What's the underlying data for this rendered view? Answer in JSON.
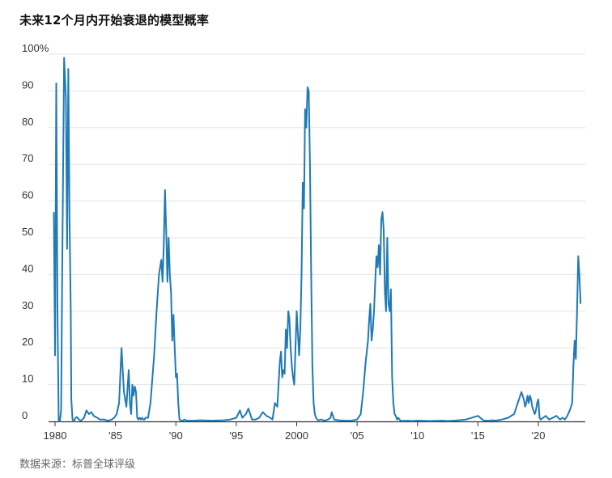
{
  "title": "未来12个月内开始衰退的模型概率",
  "source": "数据来源：标普全球评级",
  "colors": {
    "line": "#1f7ab5",
    "grid": "#e3e3e3"
  },
  "chart_data": {
    "type": "line",
    "title": "未来12个月内开始衰退的模型概率",
    "xlabel": "",
    "ylabel": "",
    "xlim": [
      1980,
      2023.5
    ],
    "ylim": [
      0,
      100
    ],
    "grid": true,
    "y_ticks": [
      {
        "value": 100,
        "label": "100%"
      },
      {
        "value": 90,
        "label": "90"
      },
      {
        "value": 80,
        "label": "80"
      },
      {
        "value": 70,
        "label": "70"
      },
      {
        "value": 60,
        "label": "60"
      },
      {
        "value": 50,
        "label": "50"
      },
      {
        "value": 40,
        "label": "40"
      },
      {
        "value": 30,
        "label": "30"
      },
      {
        "value": 20,
        "label": "20"
      },
      {
        "value": 10,
        "label": "10"
      },
      {
        "value": 0,
        "label": "0"
      }
    ],
    "x_ticks": [
      {
        "value": 1980,
        "label": "1980"
      },
      {
        "value": 1985,
        "label": "'85"
      },
      {
        "value": 1990,
        "label": "'90"
      },
      {
        "value": 1995,
        "label": "'95"
      },
      {
        "value": 2000,
        "label": "2000"
      },
      {
        "value": 2005,
        "label": "'05"
      },
      {
        "value": 2010,
        "label": "'10"
      },
      {
        "value": 2015,
        "label": "'15"
      },
      {
        "value": 2020,
        "label": "'20"
      }
    ],
    "series": [
      {
        "x": [
          1979.9,
          1980.0,
          1980.1,
          1980.2,
          1980.3,
          1980.4,
          1980.5,
          1980.6,
          1980.75,
          1980.9,
          1981.0,
          1981.1,
          1981.2,
          1981.3,
          1981.35,
          1981.45,
          1981.55,
          1981.7,
          1981.8,
          1981.9,
          1982.0,
          1982.1,
          1982.2,
          1982.4,
          1982.6,
          1982.8,
          1983.0,
          1983.2,
          1983.5,
          1983.7,
          1983.9,
          1984.1,
          1984.3,
          1984.5,
          1984.7,
          1984.9,
          1985.1,
          1985.3,
          1985.5,
          1985.7,
          1985.9,
          1986.1,
          1986.2,
          1986.3,
          1986.4,
          1986.5,
          1986.6,
          1986.7,
          1986.8,
          1986.9,
          1987.0,
          1987.1,
          1987.2,
          1987.3,
          1987.4,
          1987.5,
          1987.7,
          1987.9,
          1988.2,
          1988.4,
          1988.6,
          1988.8,
          1988.9,
          1989.0,
          1989.1,
          1989.2,
          1989.3,
          1989.4,
          1989.5,
          1989.6,
          1989.7,
          1989.8,
          1989.9,
          1990.0,
          1990.1,
          1990.2,
          1990.3,
          1990.4,
          1990.5,
          1990.6,
          1990.7,
          1990.8,
          1991.0,
          1991.5,
          1992.0,
          1993.0,
          1994.0,
          1994.5,
          1995.0,
          1995.3,
          1995.5,
          1995.8,
          1996.0,
          1996.3,
          1996.6,
          1996.9,
          1997.2,
          1997.5,
          1997.8,
          1998.0,
          1998.2,
          1998.4,
          1998.5,
          1998.6,
          1998.7,
          1998.8,
          1998.9,
          1999.0,
          1999.1,
          1999.2,
          1999.3,
          1999.4,
          1999.5,
          1999.6,
          1999.7,
          1999.8,
          1999.9,
          2000.0,
          2000.1,
          2000.2,
          2000.3,
          2000.4,
          2000.5,
          2000.6,
          2000.7,
          2000.8,
          2000.9,
          2001.0,
          2001.1,
          2001.2,
          2001.3,
          2001.4,
          2001.5,
          2001.6,
          2001.7,
          2001.8,
          2002.0,
          2002.3,
          2002.6,
          2002.8,
          2002.9,
          2003.1,
          2003.5,
          2004.0,
          2004.5,
          2005.0,
          2005.3,
          2005.5,
          2005.7,
          2005.9,
          2006.0,
          2006.1,
          2006.2,
          2006.3,
          2006.4,
          2006.5,
          2006.6,
          2006.7,
          2006.8,
          2006.9,
          2007.0,
          2007.1,
          2007.2,
          2007.3,
          2007.4,
          2007.5,
          2007.6,
          2007.7,
          2007.8,
          2007.9,
          2008.0,
          2008.1,
          2008.2,
          2008.3,
          2008.4,
          2008.5,
          2008.6,
          2008.7,
          2008.8,
          2008.9,
          2009.0,
          2009.2,
          2009.5,
          2010.0,
          2011.0,
          2012.0,
          2012.5,
          2013.0,
          2014.0,
          2015.0,
          2015.5,
          2016.0,
          2016.2,
          2016.4,
          2017.0,
          2017.5,
          2018.0,
          2018.2,
          2018.4,
          2018.6,
          2018.8,
          2018.9,
          2019.0,
          2019.1,
          2019.2,
          2019.3,
          2019.4,
          2019.5,
          2019.6,
          2019.7,
          2019.8,
          2019.9,
          2020.0,
          2020.1,
          2020.2,
          2020.4,
          2020.6,
          2020.9,
          2021.2,
          2021.5,
          2021.8,
          2022.0,
          2022.2,
          2022.4,
          2022.6,
          2022.8,
          2022.9,
          2023.0,
          2023.1,
          2023.2,
          2023.3,
          2023.4,
          2023.5
        ],
        "y": [
          57,
          18,
          92,
          30,
          0,
          0,
          3,
          45,
          99,
          88,
          47,
          96,
          55,
          30,
          6,
          0.5,
          0,
          1,
          1.2,
          0.8,
          0.5,
          0.2,
          0.3,
          1,
          3,
          2,
          2.5,
          1.5,
          1,
          0.5,
          0.5,
          0.5,
          0.2,
          0.3,
          0.5,
          1,
          2,
          5,
          20,
          8,
          4,
          14,
          5,
          2,
          10,
          7,
          9.5,
          8,
          1,
          0.5,
          1,
          0.5,
          1,
          0.5,
          0.5,
          1,
          1,
          5,
          18,
          30,
          40,
          44,
          38,
          48,
          63,
          52,
          38,
          50,
          40,
          35,
          22,
          29,
          20,
          12,
          13,
          5,
          0.5,
          0.3,
          0.2,
          0.2,
          0.5,
          0.3,
          0.2,
          0.2,
          0.3,
          0.2,
          0.3,
          0.5,
          1,
          3,
          1,
          2,
          3.5,
          0.5,
          0.5,
          1,
          2.5,
          1.5,
          1,
          0.5,
          5,
          4,
          10,
          16,
          19,
          12,
          14,
          13,
          25,
          20,
          30,
          28,
          20,
          15,
          12,
          10,
          20,
          30,
          24,
          18,
          25,
          40,
          65,
          58,
          85,
          80,
          91,
          90,
          70,
          40,
          15,
          5,
          2,
          1,
          0.5,
          0.3,
          0.5,
          0.2,
          0.5,
          1,
          2.5,
          0.5,
          0.3,
          0.2,
          0.2,
          0.5,
          2,
          8,
          16,
          22,
          28,
          32,
          22,
          25,
          30,
          38,
          45,
          42,
          48,
          40,
          55,
          57,
          52,
          35,
          30,
          50,
          32,
          30,
          36,
          12,
          5,
          2,
          1.5,
          0.5,
          1,
          0.5,
          0.2,
          0.1,
          0.1,
          0.2,
          0.1,
          0.2,
          0.1,
          0.2,
          0.1,
          0.2,
          0.1,
          0.2,
          0.5,
          1.5,
          0.2,
          0.2,
          0.3,
          0.2,
          0.5,
          1,
          2,
          4,
          6,
          8,
          6,
          4,
          5,
          7,
          5,
          7,
          6,
          4,
          3,
          2,
          3,
          5,
          6,
          1,
          0.5,
          1,
          1.5,
          0.5,
          1,
          1.5,
          0.5,
          1,
          0.5,
          1.5,
          3,
          5,
          15,
          22,
          17,
          30,
          45,
          40,
          32
        ],
        "color": "#1f7ab5"
      }
    ]
  }
}
